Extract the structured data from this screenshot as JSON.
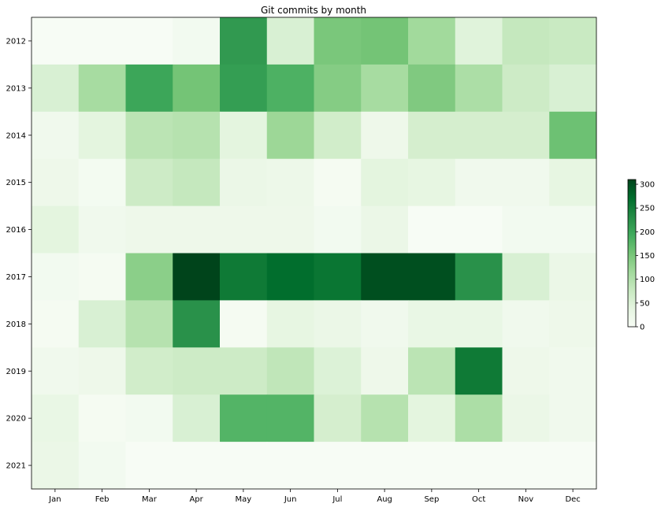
{
  "chart_data": {
    "type": "heatmap",
    "title": "Git commits by month",
    "xlabel": "",
    "ylabel": "",
    "colormap": "Greens",
    "color_low": "#f7fcf5",
    "color_high": "#00441b",
    "x_categories": [
      "Jan",
      "Feb",
      "Mar",
      "Apr",
      "May",
      "Jun",
      "Jul",
      "Aug",
      "Sep",
      "Oct",
      "Nov",
      "Dec"
    ],
    "y_categories": [
      "2012",
      "2013",
      "2014",
      "2015",
      "2016",
      "2017",
      "2018",
      "2019",
      "2020",
      "2021"
    ],
    "values": [
      [
        0,
        0,
        0,
        10,
        215,
        55,
        150,
        155,
        115,
        45,
        80,
        75
      ],
      [
        55,
        110,
        200,
        155,
        210,
        185,
        140,
        110,
        145,
        105,
        70,
        55
      ],
      [
        15,
        40,
        90,
        95,
        40,
        120,
        65,
        20,
        60,
        60,
        60,
        160
      ],
      [
        20,
        8,
        70,
        80,
        25,
        22,
        5,
        40,
        35,
        15,
        15,
        35
      ],
      [
        40,
        15,
        20,
        20,
        20,
        20,
        10,
        25,
        0,
        0,
        10,
        10
      ],
      [
        10,
        5,
        135,
        310,
        255,
        270,
        260,
        300,
        300,
        225,
        55,
        25
      ],
      [
        5,
        55,
        95,
        225,
        5,
        35,
        25,
        15,
        30,
        30,
        15,
        20
      ],
      [
        15,
        20,
        65,
        70,
        70,
        85,
        50,
        20,
        90,
        255,
        20,
        15
      ],
      [
        30,
        5,
        10,
        55,
        180,
        180,
        60,
        95,
        40,
        105,
        25,
        15
      ],
      [
        25,
        10,
        0,
        0,
        0,
        0,
        0,
        0,
        0,
        0,
        0,
        0
      ]
    ],
    "colorbar": {
      "min": 0,
      "max": 310,
      "ticks": [
        "0",
        "50",
        "100",
        "150",
        "200",
        "250",
        "300"
      ]
    }
  }
}
